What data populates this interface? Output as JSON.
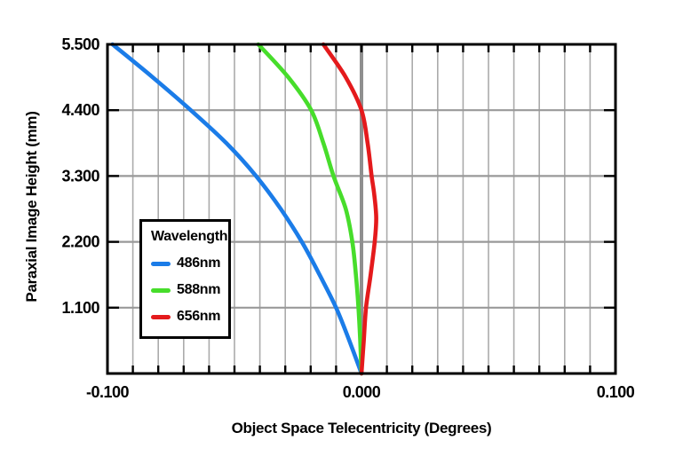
{
  "page": {
    "background": "#ffffff"
  },
  "chart_data": {
    "type": "line",
    "title": "",
    "xlabel": "Object Space Telecentricity (Degrees)",
    "ylabel": "Paraxial Image Height (mm)",
    "xlim": [
      -0.1,
      0.1
    ],
    "ylim": [
      0,
      5.5
    ],
    "x_grid_step": 0.01,
    "y_grid_lines": [
      1.1,
      2.2,
      3.3,
      4.4
    ],
    "x_tick_labels": [
      {
        "value": -0.1,
        "label": "-0.100"
      },
      {
        "value": 0.0,
        "label": "0.000"
      },
      {
        "value": 0.1,
        "label": "0.100"
      }
    ],
    "y_tick_labels": [
      {
        "value": 5.5,
        "label": "5.500"
      },
      {
        "value": 4.4,
        "label": "4.400"
      },
      {
        "value": 3.3,
        "label": "3.300"
      },
      {
        "value": 2.2,
        "label": "2.200"
      },
      {
        "value": 1.1,
        "label": "1.100"
      }
    ],
    "grid_on": true,
    "zero_line": {
      "x": 0.0,
      "color": "#8f8f8f"
    },
    "colors": {
      "vertical_grid": "#ababab",
      "horizontal_grid": "#999999",
      "border": "#000000",
      "text": "#000000"
    },
    "legend": {
      "title": "Wavelength:",
      "position": "middle-left"
    },
    "series": [
      {
        "name": "486nm",
        "color": "#1b7ce8",
        "points": [
          [
            0.0,
            0.0
          ],
          [
            -0.0048,
            0.55
          ],
          [
            -0.01,
            1.1
          ],
          [
            -0.0165,
            1.65
          ],
          [
            -0.0235,
            2.2
          ],
          [
            -0.0318,
            2.75
          ],
          [
            -0.0415,
            3.3
          ],
          [
            -0.0532,
            3.85
          ],
          [
            -0.0672,
            4.4
          ],
          [
            -0.0822,
            4.95
          ],
          [
            -0.098,
            5.5
          ]
        ]
      },
      {
        "name": "588nm",
        "color": "#47dd2b",
        "points": [
          [
            0.0,
            0.0
          ],
          [
            -0.0005,
            0.55
          ],
          [
            -0.0012,
            1.1
          ],
          [
            -0.0022,
            1.65
          ],
          [
            -0.0036,
            2.2
          ],
          [
            -0.0062,
            2.75
          ],
          [
            -0.011,
            3.3
          ],
          [
            -0.015,
            3.85
          ],
          [
            -0.0198,
            4.4
          ],
          [
            -0.0288,
            4.95
          ],
          [
            -0.0406,
            5.5
          ]
        ]
      },
      {
        "name": "656nm",
        "color": "#e41a1c",
        "points": [
          [
            0.0,
            0.0
          ],
          [
            0.0009,
            0.55
          ],
          [
            0.0018,
            1.1
          ],
          [
            0.0036,
            1.65
          ],
          [
            0.0052,
            2.2
          ],
          [
            0.0058,
            2.6
          ],
          [
            0.005,
            3.0
          ],
          [
            0.004,
            3.3
          ],
          [
            0.0024,
            3.85
          ],
          [
            0.0,
            4.4
          ],
          [
            -0.0062,
            4.95
          ],
          [
            -0.015,
            5.5
          ]
        ]
      }
    ]
  }
}
